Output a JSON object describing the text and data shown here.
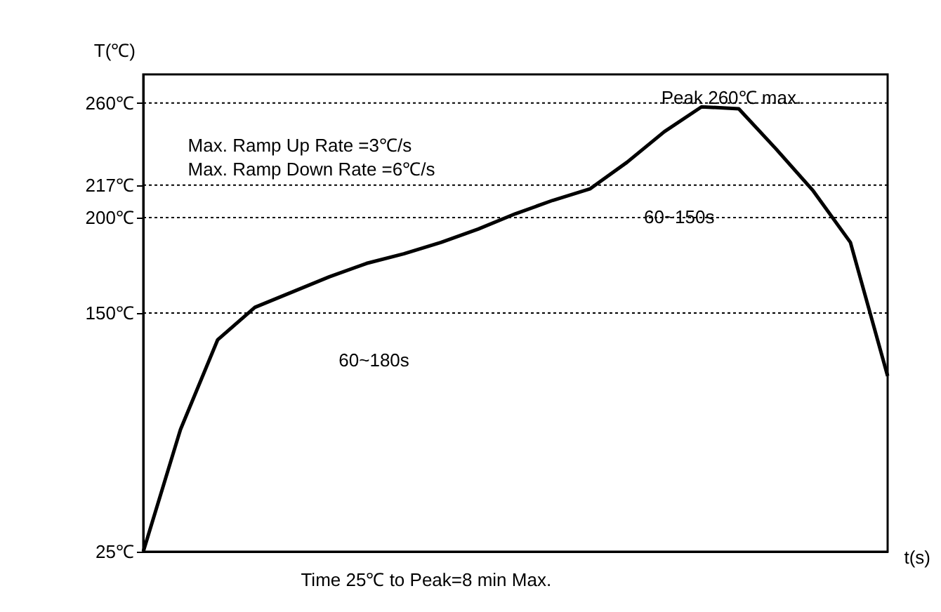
{
  "chart_data": {
    "type": "line",
    "xlabel": "t(s)",
    "ylabel": "T(℃)",
    "categories": [
      null,
      null,
      null,
      null,
      null,
      null,
      null,
      null,
      null,
      null,
      null,
      null,
      null,
      null,
      null,
      null,
      null,
      null,
      null,
      null,
      null
    ],
    "values": [
      25,
      89,
      136,
      153,
      161,
      169,
      176,
      181,
      187,
      194,
      202,
      209,
      215,
      229,
      245,
      258,
      257,
      236,
      214,
      187,
      117
    ],
    "color": "#000000",
    "marker": "none",
    "line_style": "solid",
    "tick_labels": "y",
    "grid": false,
    "ylim": [
      25,
      275
    ],
    "yticks": [
      {
        "value": 25,
        "label": "25℃"
      },
      {
        "value": 150,
        "label": "150℃"
      },
      {
        "value": 200,
        "label": "200℃"
      },
      {
        "value": 217,
        "label": "217℃"
      },
      {
        "value": 260,
        "label": "260℃"
      }
    ],
    "ref_lines": [
      {
        "axis": "y",
        "value": 150,
        "line_style": "dotted",
        "color": "#000000"
      },
      {
        "axis": "y",
        "value": 200,
        "line_style": "dotted",
        "color": "#000000"
      },
      {
        "axis": "y",
        "value": 217,
        "line_style": "dotted",
        "color": "#000000"
      },
      {
        "axis": "y",
        "value": 260,
        "line_style": "dotted",
        "color": "#000000"
      }
    ],
    "annotations": [
      "Peak 260℃ max.",
      "Max. Ramp Up Rate =3℃/s",
      "Max. Ramp Down Rate =6℃/s",
      "60~180s",
      "60~150s",
      "Time 25℃ to Peak=8 min Max."
    ]
  }
}
